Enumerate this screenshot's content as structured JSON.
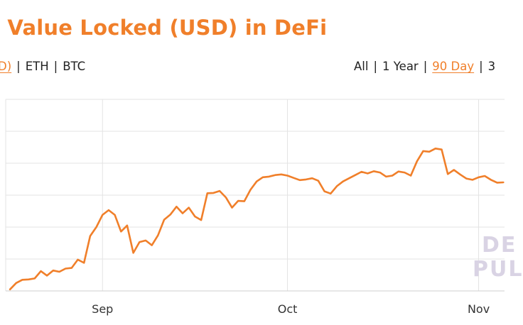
{
  "header": {
    "title": "l Value Locked (USD) in DeFi"
  },
  "currency_options": [
    {
      "label": "D)",
      "active": true
    },
    {
      "label": "ETH",
      "active": false
    },
    {
      "label": "BTC",
      "active": false
    }
  ],
  "range_options": [
    {
      "label": "All",
      "active": false
    },
    {
      "label": "1 Year",
      "active": false
    },
    {
      "label": "90 Day",
      "active": true
    },
    {
      "label": "3",
      "active": false
    }
  ],
  "separator": "|",
  "watermark": {
    "line1": "DE",
    "line2": "PUL"
  },
  "colors": {
    "line": "#f07f2a",
    "grid": "#e3e3e3",
    "axis_text": "#333333",
    "accent": "#f07f2a"
  },
  "chart_data": {
    "type": "line",
    "title": "l Value Locked (USD) in DeFi",
    "xlabel": "",
    "ylabel": "",
    "x_ticks": [
      {
        "label": "Sep",
        "day": 30
      },
      {
        "label": "Oct",
        "day": 60
      },
      {
        "label": "Nov",
        "day": 91
      }
    ],
    "x_range": [
      14.3,
      95.2
    ],
    "y_range": [
      0,
      6
    ],
    "y_grid_count": 6,
    "grid": true,
    "series": [
      {
        "name": "",
        "x": [
          15,
          16,
          17,
          18,
          19,
          20,
          21,
          22,
          23,
          24,
          25,
          26,
          27,
          28,
          29,
          30,
          31,
          32,
          33,
          34,
          35,
          36,
          37,
          38,
          39,
          40,
          41,
          42,
          43,
          44,
          45,
          46,
          47,
          48,
          49,
          50,
          51,
          52,
          53,
          54,
          55,
          56,
          57,
          58,
          59,
          60,
          61,
          62,
          63,
          64,
          65,
          66,
          67,
          68,
          69,
          70,
          71,
          72,
          73,
          74,
          75,
          76,
          77,
          78,
          79,
          80,
          81,
          82,
          83,
          84,
          85,
          86,
          87,
          88,
          89,
          90,
          91,
          92,
          93,
          94,
          95
        ],
        "values": [
          0.05,
          0.25,
          0.35,
          0.36,
          0.39,
          0.62,
          0.48,
          0.64,
          0.6,
          0.7,
          0.72,
          0.98,
          0.88,
          1.72,
          2.0,
          2.38,
          2.53,
          2.38,
          1.86,
          2.05,
          1.19,
          1.53,
          1.58,
          1.43,
          1.74,
          2.23,
          2.39,
          2.64,
          2.43,
          2.61,
          2.33,
          2.22,
          3.06,
          3.07,
          3.13,
          2.93,
          2.61,
          2.82,
          2.81,
          3.17,
          3.43,
          3.56,
          3.58,
          3.63,
          3.65,
          3.61,
          3.54,
          3.47,
          3.49,
          3.53,
          3.45,
          3.12,
          3.05,
          3.28,
          3.43,
          3.53,
          3.63,
          3.73,
          3.68,
          3.75,
          3.71,
          3.58,
          3.61,
          3.74,
          3.71,
          3.61,
          4.06,
          4.38,
          4.36,
          4.46,
          4.43,
          3.66,
          3.79,
          3.65,
          3.52,
          3.48,
          3.56,
          3.6,
          3.48,
          3.39,
          3.4
        ]
      }
    ]
  }
}
